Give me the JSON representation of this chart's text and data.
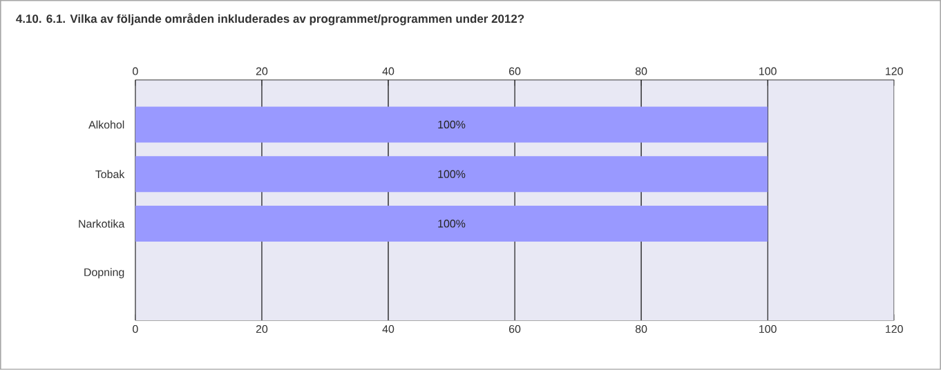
{
  "chart_data": {
    "type": "bar",
    "orientation": "horizontal",
    "title": "4.10. 6.1. Vilka av följande områden inkluderades av programmet/programmen under 2012?",
    "categories": [
      "Alkohol",
      "Tobak",
      "Narkotika",
      "Dopning"
    ],
    "values": [
      100,
      100,
      100,
      0
    ],
    "value_labels": [
      "100%",
      "100%",
      "100%",
      null
    ],
    "color": "#9999ff",
    "xlim": [
      0,
      120
    ],
    "xticks": [
      0,
      20,
      40,
      60,
      80,
      100,
      120
    ],
    "x2lim": [
      0,
      120
    ],
    "x2ticks": [
      0,
      20,
      40,
      60,
      80,
      100,
      120
    ],
    "grid": "x"
  }
}
